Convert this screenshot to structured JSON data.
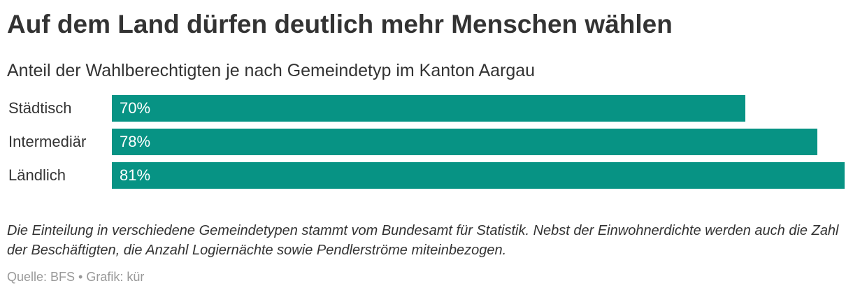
{
  "header": {
    "title": "Auf dem Land dürfen deutlich mehr Menschen wählen",
    "subtitle": "Anteil der Wahlberechtigten je nach Gemeindetyp im Kanton Aargau"
  },
  "chart_data": {
    "type": "bar",
    "orientation": "horizontal",
    "categories": [
      "Städtisch",
      "Intermediär",
      "Ländlich"
    ],
    "values": [
      70,
      78,
      81
    ],
    "value_labels": [
      "70%",
      "78%",
      "81%"
    ],
    "unit": "%",
    "xlim": [
      0,
      81
    ],
    "grid": false,
    "legend": "none",
    "bar_color": "#079384"
  },
  "footer": {
    "note": "Die Einteilung in verschiedene Gemeindetypen stammt vom Bundesamt für Statistik. Nebst der Einwohnerdichte werden auch die Zahl der Beschäftigten, die Anzahl Logiernächte sowie Pendlerströme miteinbezogen.",
    "source": "Quelle: BFS • Grafik: kür"
  }
}
